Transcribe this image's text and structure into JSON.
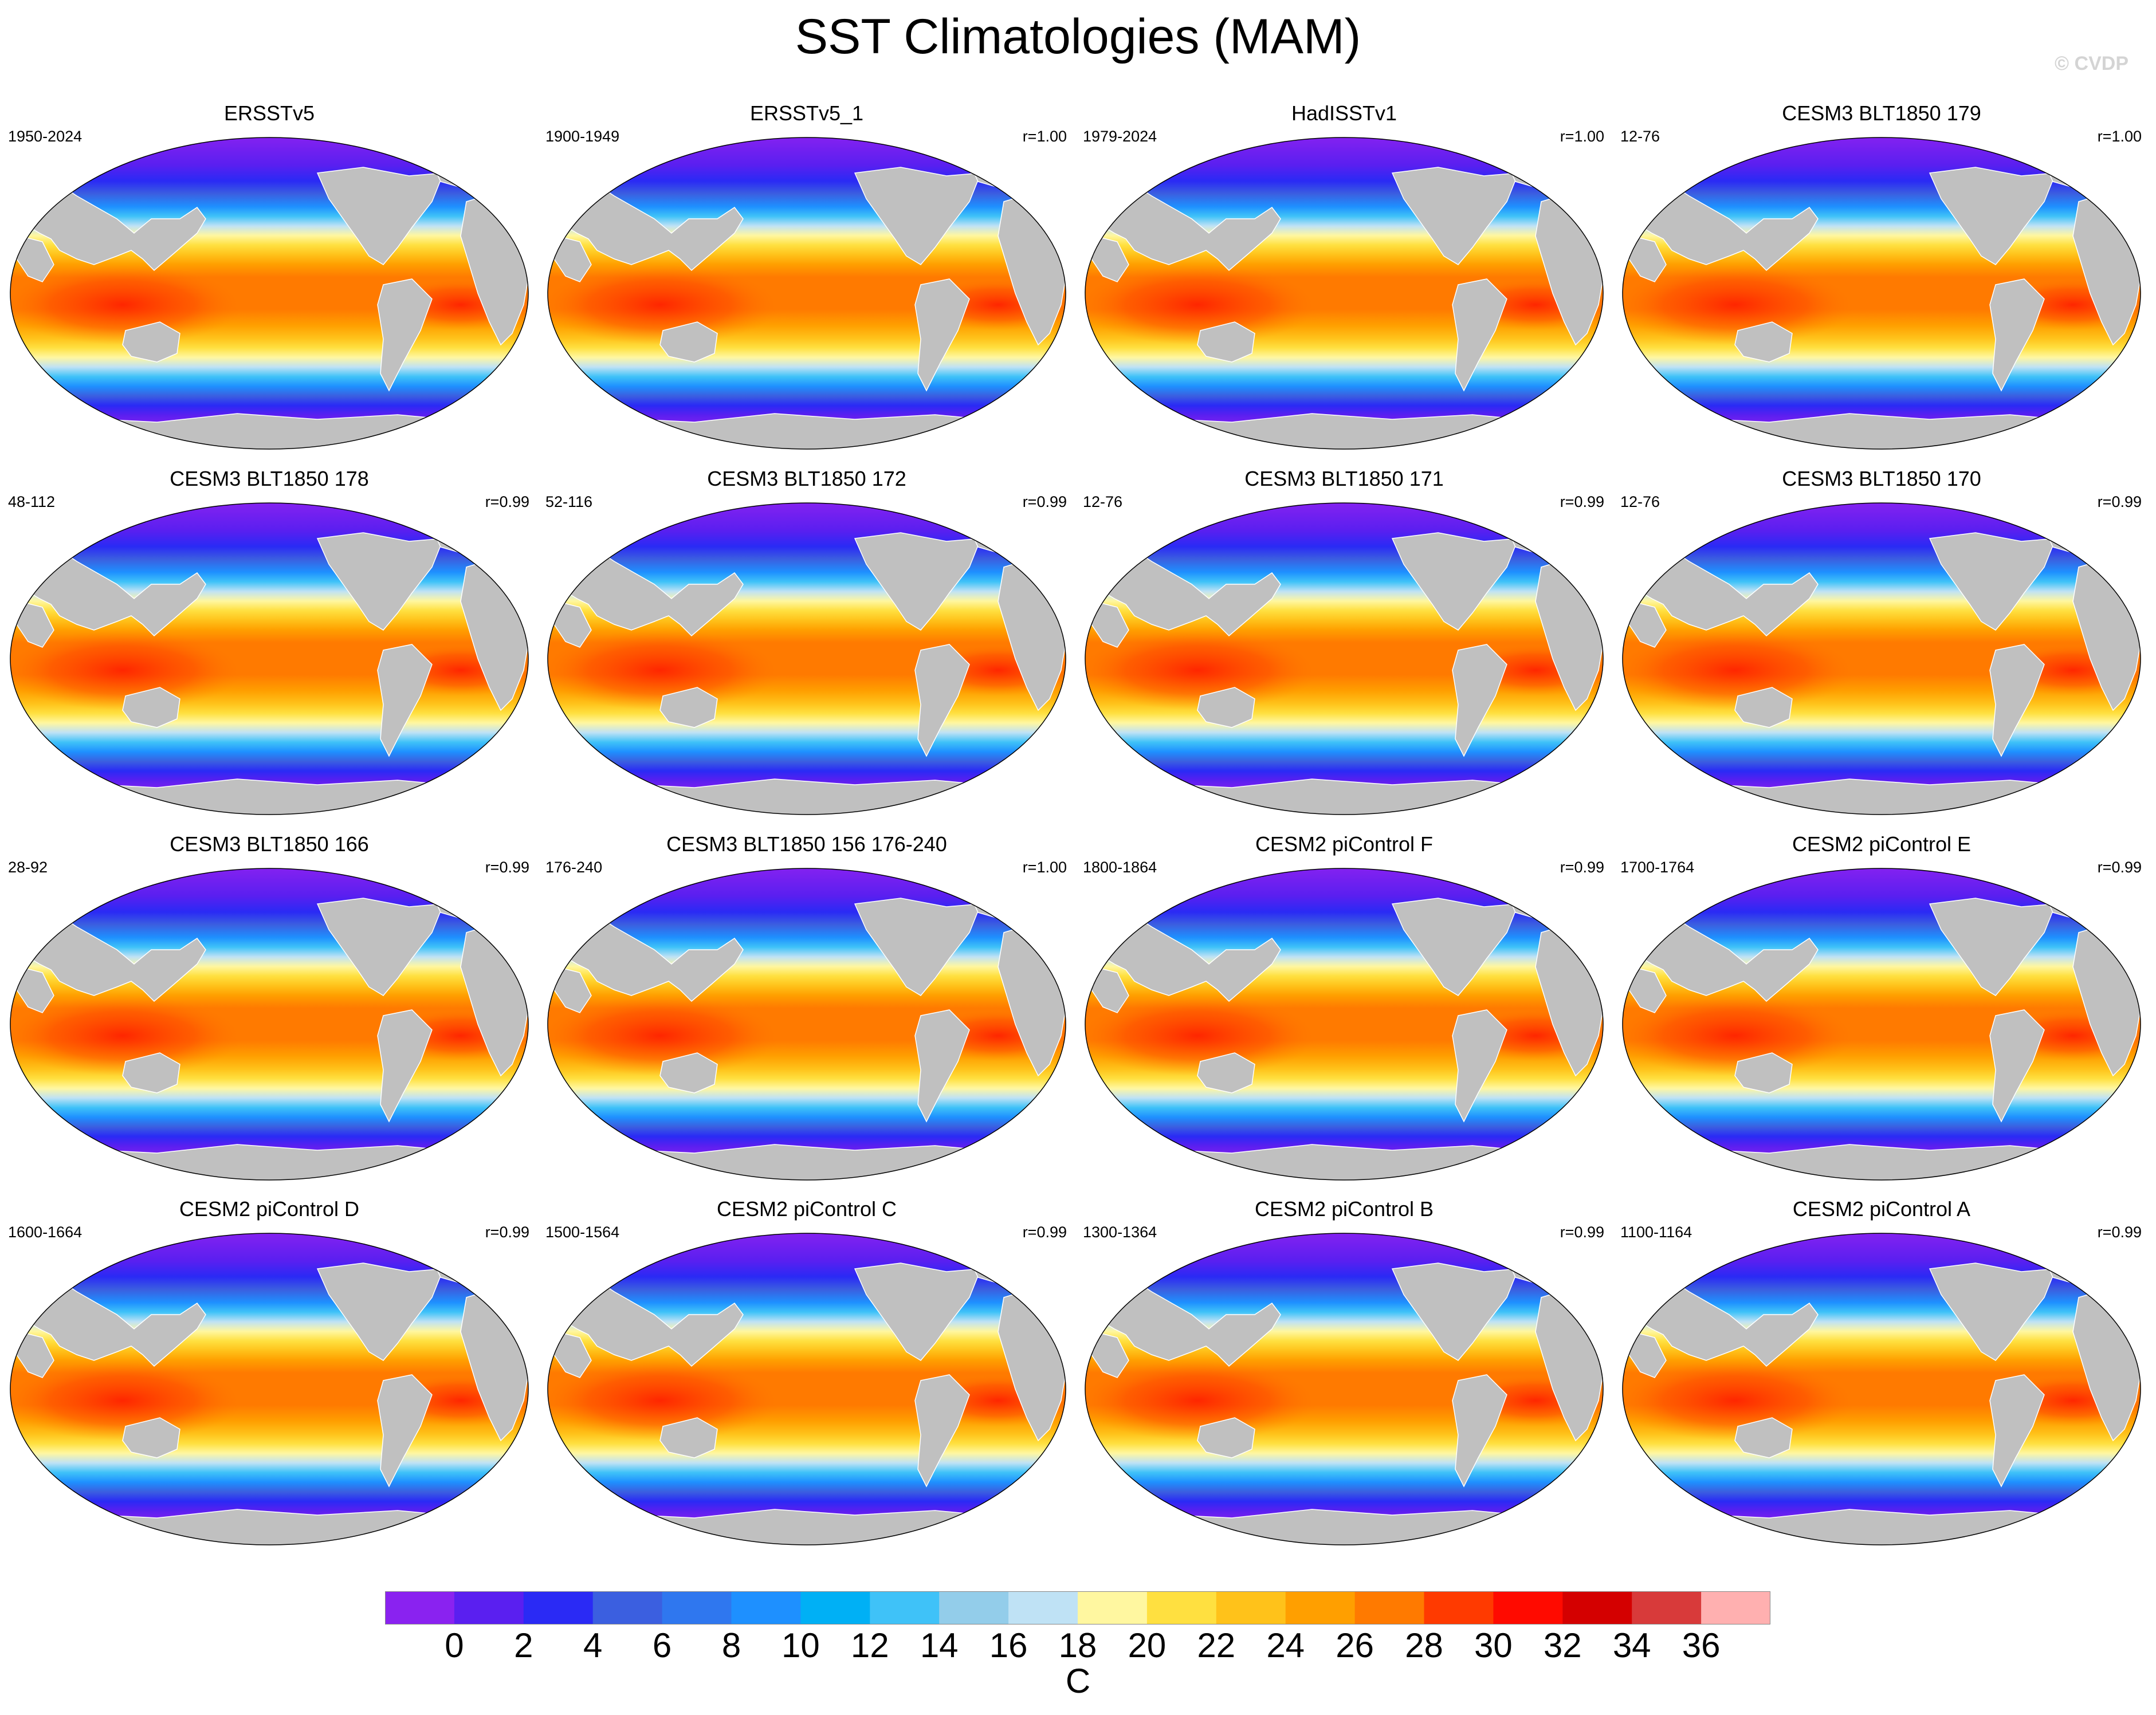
{
  "figure": {
    "title": "SST Climatologies (MAM)",
    "watermark": "© CVDP"
  },
  "panels": [
    {
      "title": "ERSSTv5",
      "years": "1950-2024",
      "r": "",
      "map_id": "ersstv5"
    },
    {
      "title": "ERSSTv5_1",
      "years": "1900-1949",
      "r": "r=1.00",
      "map_id": "ersstv5_1"
    },
    {
      "title": "HadISSTv1",
      "years": "1979-2024",
      "r": "r=1.00",
      "map_id": "hadisstv1"
    },
    {
      "title": "CESM3 BLT1850 179",
      "years": "12-76",
      "r": "r=1.00",
      "map_id": "cesm3_179"
    },
    {
      "title": "CESM3 BLT1850 178",
      "years": "48-112",
      "r": "r=0.99",
      "map_id": "cesm3_178"
    },
    {
      "title": "CESM3 BLT1850 172",
      "years": "52-116",
      "r": "r=0.99",
      "map_id": "cesm3_172"
    },
    {
      "title": "CESM3 BLT1850 171",
      "years": "12-76",
      "r": "r=0.99",
      "map_id": "cesm3_171"
    },
    {
      "title": "CESM3 BLT1850 170",
      "years": "12-76",
      "r": "r=0.99",
      "map_id": "cesm3_170"
    },
    {
      "title": "CESM3 BLT1850 166",
      "years": "28-92",
      "r": "r=0.99",
      "map_id": "cesm3_166"
    },
    {
      "title": "CESM3 BLT1850 156 176-240",
      "years": "176-240",
      "r": "r=1.00",
      "map_id": "cesm3_156"
    },
    {
      "title": "CESM2 piControl F",
      "years": "1800-1864",
      "r": "r=0.99",
      "map_id": "cesm2_f"
    },
    {
      "title": "CESM2 piControl E",
      "years": "1700-1764",
      "r": "r=0.99",
      "map_id": "cesm2_e"
    },
    {
      "title": "CESM2 piControl D",
      "years": "1600-1664",
      "r": "r=0.99",
      "map_id": "cesm2_d"
    },
    {
      "title": "CESM2 piControl C",
      "years": "1500-1564",
      "r": "r=0.99",
      "map_id": "cesm2_c"
    },
    {
      "title": "CESM2 piControl B",
      "years": "1300-1364",
      "r": "r=0.99",
      "map_id": "cesm2_b"
    },
    {
      "title": "CESM2 piControl A",
      "years": "1100-1164",
      "r": "r=0.99",
      "map_id": "cesm2_a"
    }
  ],
  "colorbar": {
    "unit": "C",
    "tick_labels": [
      "0",
      "2",
      "4",
      "6",
      "8",
      "10",
      "12",
      "14",
      "16",
      "18",
      "20",
      "22",
      "24",
      "26",
      "28",
      "30",
      "32",
      "34",
      "36"
    ],
    "colors": [
      "#8a22f0",
      "#5a1ff0",
      "#2a2af5",
      "#3b5fe0",
      "#2f77ef",
      "#1e90ff",
      "#00b0f5",
      "#3fc2f8",
      "#93cdea",
      "#bfe2f5",
      "#fff7a0",
      "#ffe040",
      "#ffc21a",
      "#ff9f00",
      "#ff7a00",
      "#ff3a00",
      "#ff0a00",
      "#d40000",
      "#d83a3a",
      "#ffb0b0"
    ]
  },
  "colors": {
    "land": "#c0c0c0",
    "background": "#ffffff"
  }
}
